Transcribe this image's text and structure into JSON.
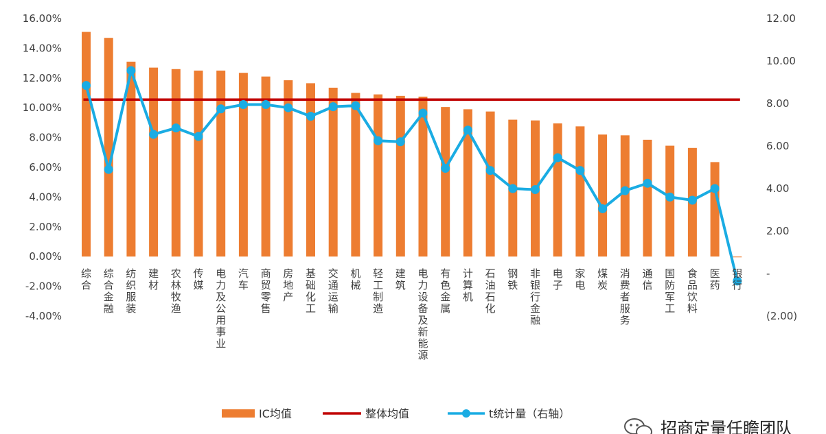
{
  "chart_data": {
    "type": "bar",
    "categories": [
      "综合",
      "综合金融",
      "纺织服装",
      "建材",
      "农林牧渔",
      "传媒",
      "电力及公用事业",
      "汽车",
      "商贸零售",
      "房地产",
      "基础化工",
      "交通运输",
      "机械",
      "轻工制造",
      "建筑",
      "电力设备及新能源",
      "有色金属",
      "计算机",
      "石油石化",
      "钢铁",
      "非银行金融",
      "电子",
      "家电",
      "煤炭",
      "消费者服务",
      "通信",
      "国防军工",
      "食品饮料",
      "医药",
      "银行"
    ],
    "series": [
      {
        "name": "IC均值",
        "kind": "bar",
        "axis": "left",
        "color": "#ED7D31",
        "values": [
          15.1,
          14.7,
          13.1,
          12.7,
          12.6,
          12.5,
          12.5,
          12.35,
          12.1,
          11.85,
          11.65,
          11.35,
          11.0,
          10.9,
          10.8,
          10.75,
          10.05,
          9.9,
          9.75,
          9.2,
          9.15,
          8.95,
          8.75,
          8.2,
          8.15,
          7.85,
          7.45,
          7.3,
          6.35,
          -0.05
        ]
      },
      {
        "name": "整体均值",
        "kind": "hline",
        "axis": "left",
        "color": "#C00000",
        "value": 10.55
      },
      {
        "name": "t统计量（右轴）",
        "kind": "line",
        "axis": "right",
        "color": "#1AACE3",
        "values": [
          8.85,
          4.9,
          9.55,
          6.55,
          6.85,
          6.45,
          7.75,
          7.95,
          7.95,
          7.8,
          7.4,
          7.85,
          7.9,
          6.25,
          6.2,
          7.55,
          4.95,
          6.75,
          4.85,
          4.0,
          3.95,
          5.45,
          4.85,
          3.05,
          3.9,
          4.25,
          3.6,
          3.45,
          4.0,
          -0.35
        ]
      }
    ],
    "left_axis": {
      "ylim": [
        -4,
        16
      ],
      "ticks": [
        "16.00%",
        "14.00%",
        "12.00%",
        "10.00%",
        "8.00%",
        "6.00%",
        "4.00%",
        "2.00%",
        "0.00%",
        "-2.00%",
        "-4.00%"
      ]
    },
    "right_axis": {
      "ylim": [
        -2,
        12
      ],
      "ticks": [
        "12.00",
        "10.00",
        "8.00",
        "6.00",
        "4.00",
        "2.00",
        "-",
        "(2.00)"
      ]
    },
    "legend": [
      "IC均值",
      "整体均值",
      "t统计量（右轴）"
    ],
    "legend_position": "bottom-center",
    "grid": false
  },
  "watermark": "招商定量任瞻团队"
}
